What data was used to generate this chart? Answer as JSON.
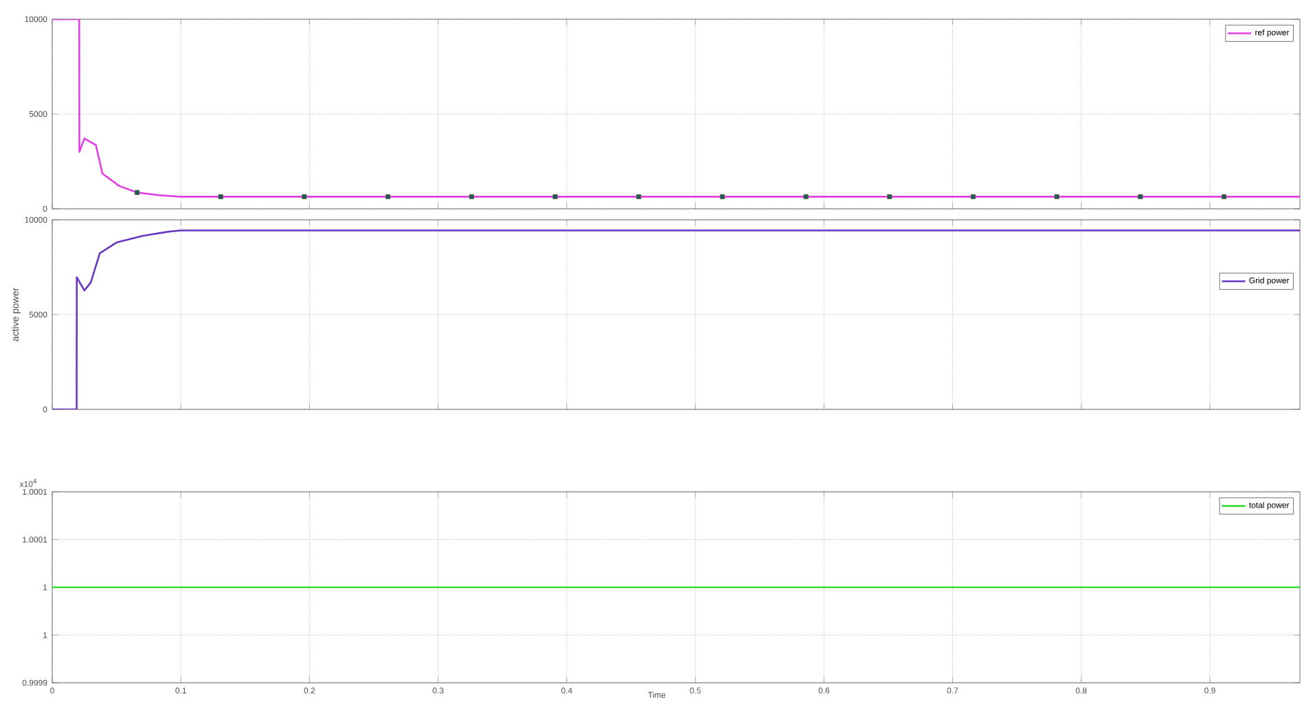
{
  "chart_data": [
    {
      "type": "line",
      "xlim": [
        0,
        0.97
      ],
      "xticks": [
        0,
        0.1,
        0.2,
        0.3,
        0.4,
        0.5,
        0.6,
        0.7,
        0.8,
        0.9
      ],
      "ylim": [
        0,
        10000
      ],
      "yticks": [
        0,
        5000,
        10000
      ],
      "tick_labels": "y",
      "grid": true,
      "legend": "top right",
      "series": [
        {
          "name": "ref power",
          "color": "#e040e0",
          "x": [
            0,
            0.021,
            0.0211,
            0.025,
            0.034,
            0.039,
            0.052,
            0.066,
            0.084,
            0.1,
            0.97
          ],
          "values": [
            10000,
            10000,
            3000,
            3710,
            3360,
            1860,
            1210,
            860,
            710,
            640,
            640
          ]
        },
        {
          "type": "scatter",
          "marker": "square",
          "color": "#1e5a4a",
          "x": [
            0.066,
            0.131,
            0.196,
            0.261,
            0.326,
            0.391,
            0.456,
            0.521,
            0.586,
            0.651,
            0.716,
            0.781,
            0.846,
            0.911
          ],
          "values": [
            860,
            640,
            640,
            640,
            640,
            640,
            640,
            640,
            640,
            640,
            640,
            640,
            640,
            640
          ]
        }
      ]
    },
    {
      "type": "line",
      "xlim": [
        0,
        0.97
      ],
      "xticks": [
        0,
        0.1,
        0.2,
        0.3,
        0.4,
        0.5,
        0.6,
        0.7,
        0.8,
        0.9
      ],
      "ylim": [
        0,
        10000
      ],
      "yticks": [
        0,
        5000,
        10000
      ],
      "tick_labels": "y",
      "grid": true,
      "legend": "right",
      "ylabel": "active power",
      "series": [
        {
          "name": "Grid power",
          "color": "#6a35c0",
          "x": [
            0,
            0.019,
            0.0191,
            0.025,
            0.03,
            0.037,
            0.05,
            0.07,
            0.09,
            0.1,
            0.97
          ],
          "values": [
            0,
            0,
            6970,
            6270,
            6700,
            8240,
            8800,
            9150,
            9370,
            9440,
            9440
          ]
        }
      ]
    },
    {
      "type": "line",
      "xlim": [
        0,
        0.97
      ],
      "xticks": [
        0,
        0.1,
        0.2,
        0.3,
        0.4,
        0.5,
        0.6,
        0.7,
        0.8,
        0.9
      ],
      "xlabel": "Time",
      "ylim": [
        0.9999,
        1.0001
      ],
      "yticks": [
        {
          "value": 0.9999,
          "label": "0.9999"
        },
        {
          "value": 0.99995,
          "label": "1"
        },
        {
          "value": 1,
          "label": "1"
        },
        {
          "value": 1.00005,
          "label": "1.0001"
        },
        {
          "value": 1.0001,
          "label": "1.0001"
        }
      ],
      "grid": true,
      "legend": "top right",
      "annotations": [
        "x10$^{4}$"
      ],
      "series": [
        {
          "name": "total power",
          "color": "#33dd33",
          "x": [
            0,
            0.97
          ],
          "values": [
            1,
            1
          ]
        }
      ]
    }
  ]
}
